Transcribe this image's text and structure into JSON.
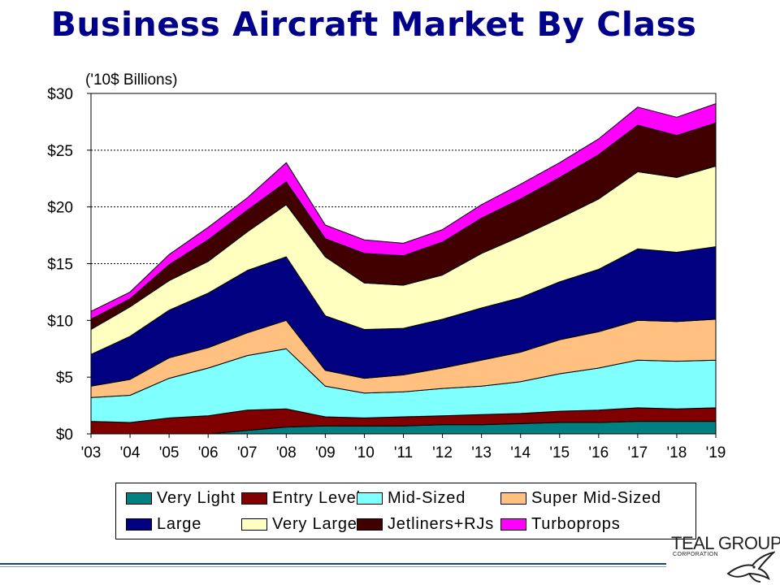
{
  "title": "Business Aircraft Market By Class",
  "logo": {
    "name": "TEAL GROUP",
    "sub": "CORPORATION"
  },
  "chart_data": {
    "type": "area",
    "stacked": true,
    "unit_label": "('10$ Billions)",
    "categories": [
      "'03",
      "'04",
      "'05",
      "'06",
      "'07",
      "'08",
      "'09",
      "'10",
      "'11",
      "'12",
      "'13",
      "'14",
      "'15",
      "'16",
      "'17",
      "'18",
      "'19"
    ],
    "y_ticks": [
      "$0",
      "$5",
      "$10",
      "$15",
      "$20",
      "$25",
      "$30"
    ],
    "ylim": [
      0,
      30
    ],
    "grid": "horizontal-dotted",
    "legend_position": "bottom",
    "series": [
      {
        "name": "Very Light",
        "color": "#008080",
        "values": [
          0.0,
          0.0,
          0.0,
          0.0,
          0.3,
          0.6,
          0.7,
          0.7,
          0.7,
          0.8,
          0.8,
          0.9,
          1.0,
          1.0,
          1.1,
          1.1,
          1.1
        ]
      },
      {
        "name": "Entry Level",
        "color": "#800000",
        "values": [
          1.1,
          1.0,
          1.4,
          1.6,
          1.8,
          1.6,
          0.8,
          0.7,
          0.8,
          0.8,
          0.9,
          0.9,
          1.0,
          1.1,
          1.2,
          1.1,
          1.2
        ]
      },
      {
        "name": "Mid-Sized",
        "color": "#80ffff",
        "values": [
          2.1,
          2.4,
          3.5,
          4.2,
          4.8,
          5.3,
          2.7,
          2.2,
          2.2,
          2.4,
          2.5,
          2.8,
          3.3,
          3.7,
          4.2,
          4.2,
          4.2
        ]
      },
      {
        "name": "Super Mid-Sized",
        "color": "#ffc080",
        "values": [
          1.0,
          1.4,
          1.8,
          1.8,
          2.0,
          2.5,
          1.4,
          1.3,
          1.5,
          1.8,
          2.3,
          2.6,
          3.0,
          3.2,
          3.5,
          3.5,
          3.6
        ]
      },
      {
        "name": "Large",
        "color": "#000080",
        "values": [
          2.8,
          3.8,
          4.2,
          4.8,
          5.5,
          5.6,
          4.8,
          4.3,
          4.1,
          4.3,
          4.6,
          4.8,
          5.1,
          5.5,
          6.3,
          6.1,
          6.4
        ]
      },
      {
        "name": "Very Large",
        "color": "#ffffc0",
        "values": [
          2.2,
          2.6,
          2.6,
          2.8,
          3.4,
          4.6,
          5.2,
          4.1,
          3.8,
          3.9,
          4.8,
          5.4,
          5.6,
          6.2,
          6.8,
          6.6,
          7.1
        ]
      },
      {
        "name": "Jetliners+RJs",
        "color": "#400000",
        "values": [
          0.9,
          0.7,
          1.4,
          1.9,
          1.9,
          2.0,
          1.6,
          2.6,
          2.6,
          2.9,
          3.1,
          3.3,
          3.6,
          3.9,
          4.1,
          3.7,
          3.8
        ]
      },
      {
        "name": "Turboprops",
        "color": "#ff00ff",
        "values": [
          0.7,
          0.6,
          0.9,
          1.1,
          1.1,
          1.7,
          1.2,
          1.2,
          1.1,
          1.1,
          1.2,
          1.3,
          1.3,
          1.4,
          1.6,
          1.6,
          1.7
        ]
      }
    ]
  }
}
